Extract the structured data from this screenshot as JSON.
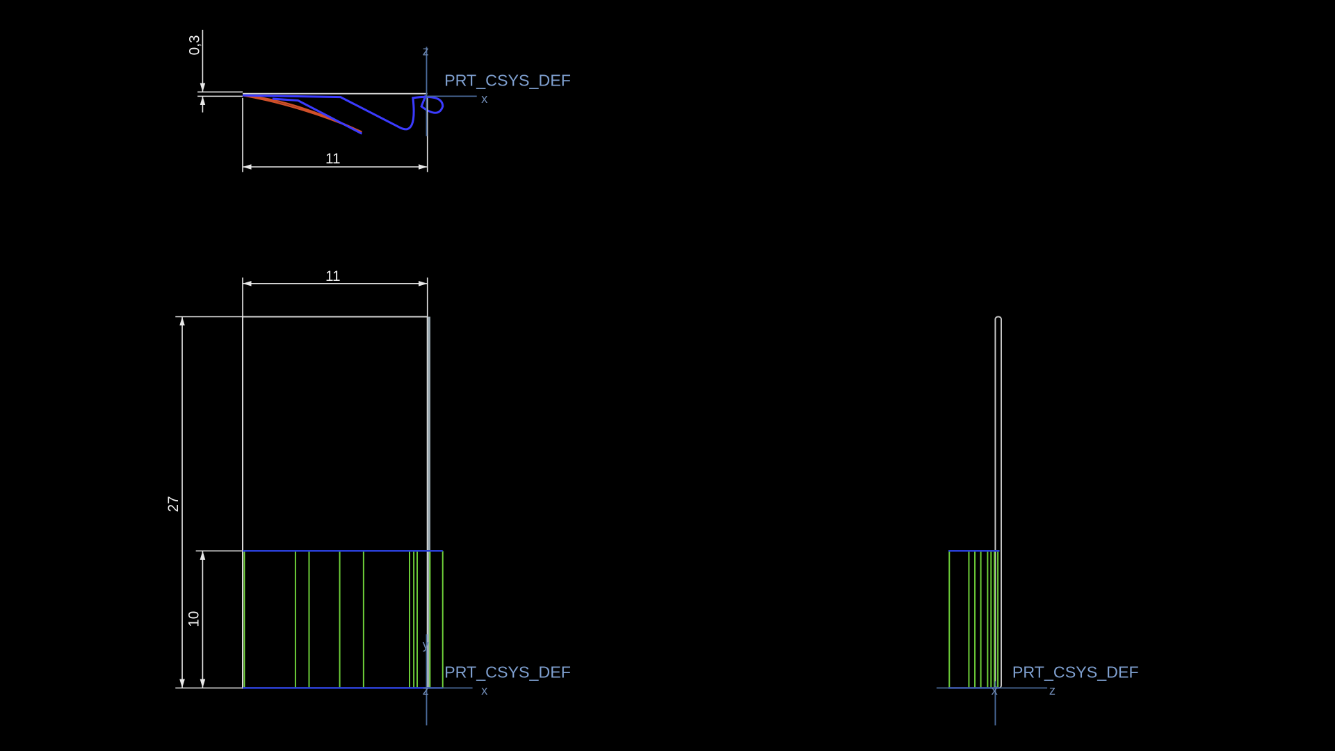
{
  "top_view": {
    "dimensions": {
      "thickness": "0,3",
      "width": "11"
    },
    "csys": {
      "label": "PRT_CSYS_DEF",
      "axis_z": "z",
      "axis_x": "x"
    }
  },
  "front_view": {
    "dimensions": {
      "width": "11",
      "height": "27",
      "lower_height": "10"
    },
    "csys": {
      "label": "PRT_CSYS_DEF",
      "axis_y": "y",
      "axis_z": "z",
      "axis_x": "x"
    }
  },
  "side_view": {
    "csys": {
      "label": "PRT_CSYS_DEF",
      "axis_x": "x",
      "axis_z": "z"
    }
  }
}
